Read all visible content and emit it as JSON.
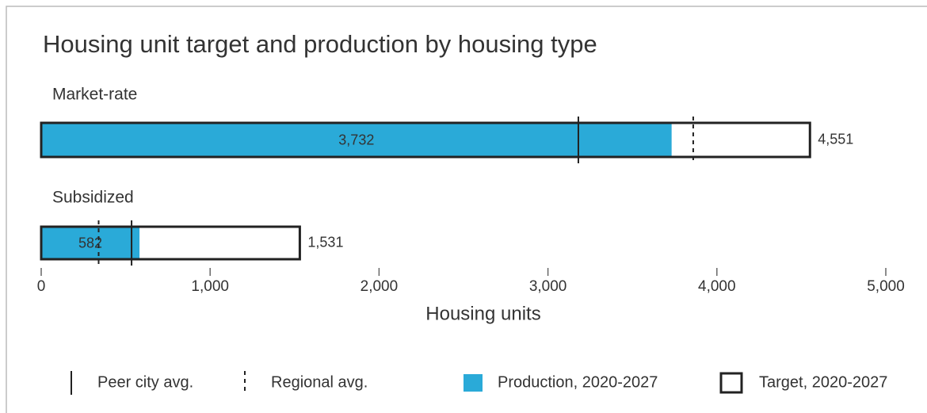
{
  "chart_data": {
    "type": "bar",
    "orientation": "horizontal",
    "title": "Housing unit target and production by housing type",
    "categories": [
      "Market-rate",
      "Subsidized"
    ],
    "x_label": "Housing units",
    "xlim": [
      0,
      5000
    ],
    "xticks": [
      0,
      {
        "value": 1000,
        "label": "1,000"
      },
      {
        "value": 2000,
        "label": "2,000"
      },
      {
        "value": 3000,
        "label": "3,000"
      },
      {
        "value": 4000,
        "label": "4,000"
      },
      {
        "value": 5000,
        "label": "5,000"
      }
    ],
    "series": [
      {
        "name": "Production, 2020-2027",
        "style": "fill",
        "color": "#2aaad8",
        "values": [
          3732,
          582
        ],
        "value_labels": [
          "3,732",
          "582"
        ]
      },
      {
        "name": "Target, 2020-2027",
        "style": "outline",
        "color": "#222222",
        "values": [
          4551,
          1531
        ],
        "value_labels": [
          "4,551",
          "1,531"
        ]
      },
      {
        "name": "Peer city avg.",
        "style": "solid-line",
        "color": "#222222",
        "values": [
          3180,
          535
        ]
      },
      {
        "name": "Regional avg.",
        "style": "dashed-line",
        "color": "#222222",
        "values": [
          3860,
          340
        ]
      }
    ]
  }
}
